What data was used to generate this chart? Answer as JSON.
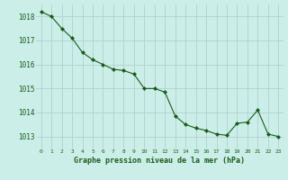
{
  "x": [
    0,
    1,
    2,
    3,
    4,
    5,
    6,
    7,
    8,
    9,
    10,
    11,
    12,
    13,
    14,
    15,
    16,
    17,
    18,
    19,
    20,
    21,
    22,
    23
  ],
  "y": [
    1018.2,
    1018.0,
    1017.5,
    1017.1,
    1016.5,
    1016.2,
    1016.0,
    1015.8,
    1015.75,
    1015.6,
    1015.0,
    1015.0,
    1014.85,
    1013.85,
    1013.5,
    1013.35,
    1013.25,
    1013.1,
    1013.05,
    1013.55,
    1013.6,
    1014.1,
    1013.1,
    1013.0
  ],
  "ylim": [
    1012.5,
    1018.5
  ],
  "yticks": [
    1013,
    1014,
    1015,
    1016,
    1017,
    1018
  ],
  "xticks": [
    0,
    1,
    2,
    3,
    4,
    5,
    6,
    7,
    8,
    9,
    10,
    11,
    12,
    13,
    14,
    15,
    16,
    17,
    18,
    19,
    20,
    21,
    22,
    23
  ],
  "line_color": "#1a5c1a",
  "marker_color": "#1a5c1a",
  "bg_color": "#cceee8",
  "grid_color": "#aacccc",
  "xlabel": "Graphe pression niveau de la mer (hPa)",
  "xlabel_color": "#1a5c1a",
  "tick_label_color": "#1a5c1a"
}
